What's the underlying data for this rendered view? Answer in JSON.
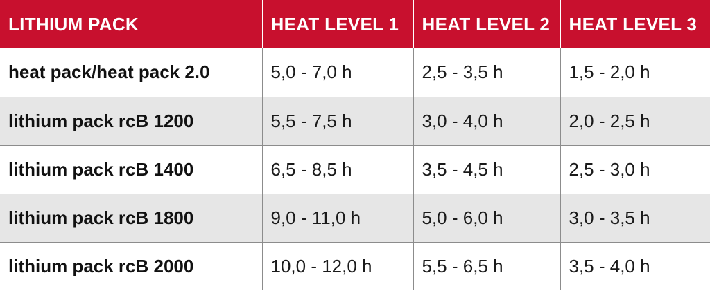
{
  "table": {
    "headers": [
      "LITHIUM PACK",
      "HEAT LEVEL 1",
      "HEAT LEVEL 2",
      "HEAT LEVEL 3"
    ],
    "rows": [
      {
        "label": "heat pack/heat pack 2.0",
        "level1": "5,0 - 7,0 h",
        "level2": "2,5 - 3,5 h",
        "level3": "1,5 - 2,0 h"
      },
      {
        "label": "lithium pack rcB 1200",
        "level1": "5,5 - 7,5 h",
        "level2": "3,0 - 4,0 h",
        "level3": "2,0 - 2,5 h"
      },
      {
        "label": "lithium pack rcB 1400",
        "level1": "6,5 - 8,5 h",
        "level2": "3,5 - 4,5 h",
        "level3": "2,5 - 3,0 h"
      },
      {
        "label": "lithium pack rcB 1800",
        "level1": "9,0 - 11,0 h",
        "level2": "5,0 - 6,0 h",
        "level3": "3,0 - 3,5 h"
      },
      {
        "label": "lithium pack rcB 2000",
        "level1": "10,0 - 12,0 h",
        "level2": "5,5 - 6,5 h",
        "level3": "3,5 - 4,0 h"
      }
    ]
  },
  "colors": {
    "header_background": "#c8102e",
    "header_text": "#ffffff",
    "alternate_row_background": "#e6e6e6",
    "grid_line": "#8c8c8c"
  }
}
